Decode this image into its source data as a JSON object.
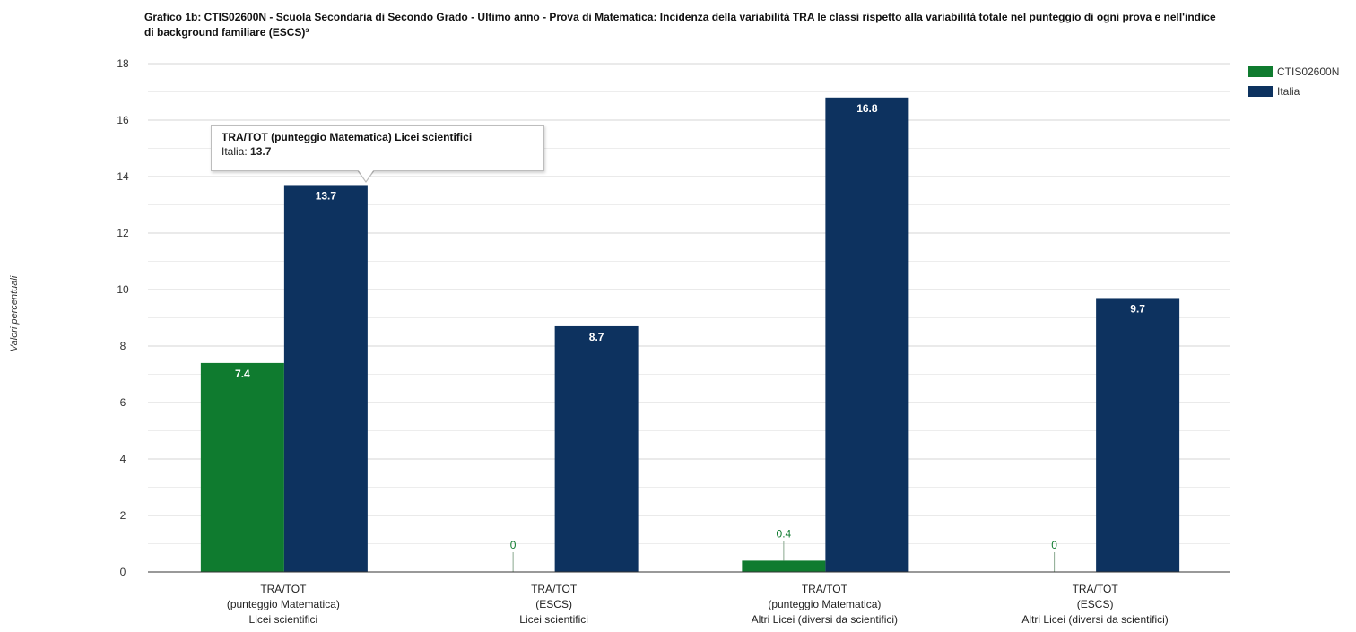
{
  "title": "Grafico 1b: CTIS02600N - Scuola Secondaria di Secondo Grado - Ultimo anno - Prova di Matematica: Incidenza della variabilità TRA le classi rispetto alla variabilità totale nel punteggio di ogni prova e nell'indice di background familiare (ESCS)³",
  "tooltip": {
    "title": "TRA/TOT (punteggio Matematica) Licei scientifici",
    "series_label": "Italia:",
    "value": "13.7"
  },
  "colors": {
    "school": "#0f7b2f",
    "italy": "#0d325f"
  },
  "chart_data": {
    "type": "bar",
    "ylabel": "Valori percentuali",
    "ylim": [
      0,
      18
    ],
    "yticks": [
      0,
      2,
      4,
      6,
      8,
      10,
      12,
      14,
      16,
      18
    ],
    "grid": true,
    "legend_position": "right",
    "categories": [
      [
        "TRA/TOT",
        "(punteggio Matematica)",
        "Licei scientifici"
      ],
      [
        "TRA/TOT",
        "(ESCS)",
        "Licei scientifici"
      ],
      [
        "TRA/TOT",
        "(punteggio Matematica)",
        "Altri Licei (diversi da scientifici)"
      ],
      [
        "TRA/TOT",
        "(ESCS)",
        "Altri Licei (diversi da scientifici)"
      ]
    ],
    "series": [
      {
        "name": "CTIS02600N",
        "values": [
          7.4,
          0,
          0.4,
          0
        ],
        "labels": [
          "7.4",
          "0",
          "0.4",
          "0"
        ],
        "color": "#0f7b2f"
      },
      {
        "name": "Italia",
        "values": [
          13.7,
          8.7,
          16.8,
          9.7
        ],
        "labels": [
          "13.7",
          "8.7",
          "16.8",
          "9.7"
        ],
        "color": "#0d325f"
      }
    ]
  }
}
